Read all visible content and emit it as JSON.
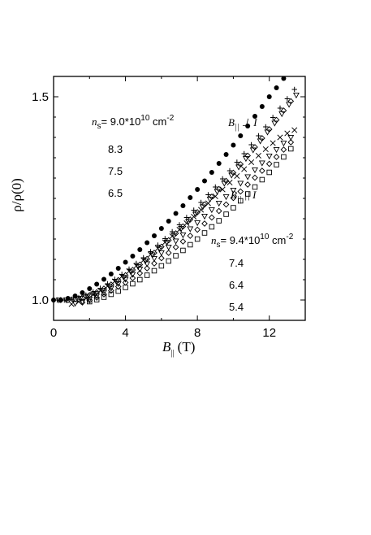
{
  "chart_data": {
    "type": "scatter",
    "xlabel": {
      "main": "B",
      "sub": "||",
      "unit": " (T)"
    },
    "ylabel": "ρ/ρ(0)",
    "xlim": [
      0,
      14
    ],
    "ylim": [
      0.95,
      1.55
    ],
    "x_ticks": [
      0,
      4,
      8,
      12
    ],
    "x_tick_labels": [
      "0",
      "4",
      "8",
      "12"
    ],
    "y_ticks": [
      1.0,
      1.5
    ],
    "y_tick_labels": [
      "1.0",
      "1.5"
    ],
    "groups": [
      {
        "label": {
          "main": "B",
          "sub": "||",
          "rest": " ⊥ I"
        },
        "legend_header": {
          "var": "n",
          "sub": "s",
          "value": "= 9.0*10",
          "sup": "10",
          "unit": " cm",
          "unit_sup": "-2"
        },
        "legend_values": [
          "8.3",
          "7.5",
          "6.5"
        ]
      },
      {
        "label": {
          "main": "B",
          "sub": "||",
          "rest": " || I"
        },
        "legend_header": {
          "var": "n",
          "sub": "s",
          "value": "= 9.4*10",
          "sup": "10",
          "unit": " cm",
          "unit_sup": "-2"
        },
        "legend_values": [
          "7.4",
          "6.4",
          "5.4"
        ]
      }
    ],
    "series": [
      {
        "group": 0,
        "marker": "filled-circle",
        "x": [
          0,
          0.4,
          0.8,
          1.2,
          1.6,
          2.0,
          2.4,
          2.8,
          3.2,
          3.6,
          4.0,
          4.4,
          4.8,
          5.2,
          5.6,
          6.0,
          6.4,
          6.8,
          7.2,
          7.6,
          8.0,
          8.4,
          8.8,
          9.2,
          9.6,
          10.0,
          10.4,
          10.8,
          11.2,
          11.6,
          12.0,
          12.4,
          12.8,
          13.2
        ],
        "y": [
          1.0,
          1.0,
          1.004,
          1.01,
          1.018,
          1.028,
          1.039,
          1.051,
          1.064,
          1.078,
          1.093,
          1.108,
          1.124,
          1.141,
          1.158,
          1.176,
          1.194,
          1.213,
          1.232,
          1.252,
          1.272,
          1.293,
          1.314,
          1.336,
          1.358,
          1.381,
          1.404,
          1.428,
          1.452,
          1.476,
          1.5,
          1.522,
          1.545,
          1.568
        ]
      },
      {
        "group": 0,
        "marker": "plus",
        "x": [
          0.2,
          0.6,
          1.0,
          1.4,
          1.8,
          2.2,
          2.6,
          3.0,
          3.4,
          3.8,
          4.2,
          4.6,
          5.0,
          5.4,
          5.8,
          6.2,
          6.6,
          7.0,
          7.4,
          7.8,
          8.2,
          8.6,
          9.0,
          9.4,
          9.8,
          10.2,
          10.6,
          11.0,
          11.4,
          11.8,
          12.2,
          12.6,
          13.0,
          13.4
        ],
        "y": [
          1.0,
          1.0,
          1.002,
          1.006,
          1.012,
          1.02,
          1.029,
          1.04,
          1.051,
          1.063,
          1.076,
          1.09,
          1.104,
          1.119,
          1.135,
          1.151,
          1.168,
          1.185,
          1.203,
          1.221,
          1.24,
          1.259,
          1.278,
          1.298,
          1.318,
          1.339,
          1.36,
          1.382,
          1.404,
          1.426,
          1.449,
          1.472,
          1.495,
          1.518
        ]
      },
      {
        "group": 0,
        "marker": "down-triangle",
        "x": [
          0.3,
          0.7,
          1.1,
          1.5,
          1.9,
          2.3,
          2.7,
          3.1,
          3.5,
          3.9,
          4.3,
          4.7,
          5.1,
          5.5,
          5.9,
          6.3,
          6.7,
          7.1,
          7.5,
          7.9,
          8.3,
          8.7,
          9.1,
          9.5,
          9.9,
          10.3,
          10.7,
          11.1,
          11.5,
          11.9,
          12.3,
          12.7,
          13.1,
          13.5
        ],
        "y": [
          1.0,
          1.0,
          1.001,
          1.004,
          1.009,
          1.016,
          1.024,
          1.034,
          1.045,
          1.056,
          1.069,
          1.082,
          1.096,
          1.111,
          1.126,
          1.142,
          1.159,
          1.176,
          1.193,
          1.211,
          1.229,
          1.248,
          1.267,
          1.287,
          1.307,
          1.327,
          1.348,
          1.369,
          1.391,
          1.413,
          1.435,
          1.458,
          1.481,
          1.504
        ]
      },
      {
        "group": 0,
        "marker": "open-diamond",
        "x": [
          0.4,
          0.8,
          1.2,
          1.6,
          2.0,
          2.4,
          2.8,
          3.2,
          3.6,
          4.0,
          4.4,
          4.8,
          5.2,
          5.6,
          6.0,
          6.4,
          6.8,
          7.2,
          7.6,
          8.0,
          8.4,
          8.8,
          9.2,
          9.6,
          10.0,
          10.4,
          10.8,
          11.2,
          11.6,
          12.0,
          12.4,
          12.8,
          13.2
        ],
        "y": [
          1.0,
          1.0,
          1.002,
          1.006,
          1.012,
          1.019,
          1.028,
          1.038,
          1.049,
          1.061,
          1.074,
          1.087,
          1.101,
          1.116,
          1.131,
          1.147,
          1.164,
          1.181,
          1.198,
          1.216,
          1.235,
          1.254,
          1.273,
          1.293,
          1.313,
          1.334,
          1.355,
          1.376,
          1.398,
          1.42,
          1.443,
          1.466,
          1.489
        ]
      },
      {
        "group": 1,
        "marker": "cross",
        "x": [
          1.0,
          1.4,
          1.8,
          2.2,
          2.6,
          3.0,
          3.4,
          3.8,
          4.2,
          4.6,
          5.0,
          5.4,
          5.8,
          6.2,
          6.6,
          7.0,
          7.4,
          7.8,
          8.2,
          8.6,
          9.0,
          9.4,
          9.8,
          10.2,
          10.6,
          11.0,
          11.4,
          11.8,
          12.2,
          12.6,
          13.0,
          13.4
        ],
        "y": [
          0.99,
          0.996,
          1.004,
          1.013,
          1.023,
          1.034,
          1.046,
          1.058,
          1.071,
          1.084,
          1.098,
          1.112,
          1.127,
          1.142,
          1.157,
          1.173,
          1.189,
          1.205,
          1.222,
          1.238,
          1.255,
          1.272,
          1.289,
          1.305,
          1.322,
          1.339,
          1.355,
          1.371,
          1.386,
          1.4,
          1.41,
          1.418
        ]
      },
      {
        "group": 1,
        "marker": "down-triangle",
        "x": [
          1.2,
          1.6,
          2.0,
          2.4,
          2.8,
          3.2,
          3.6,
          4.0,
          4.4,
          4.8,
          5.2,
          5.6,
          6.0,
          6.4,
          6.8,
          7.2,
          7.6,
          8.0,
          8.4,
          8.8,
          9.2,
          9.6,
          10.0,
          10.4,
          10.8,
          11.2,
          11.6,
          12.0,
          12.4,
          12.8,
          13.2
        ],
        "y": [
          0.992,
          0.996,
          1.002,
          1.01,
          1.019,
          1.029,
          1.04,
          1.051,
          1.063,
          1.076,
          1.089,
          1.102,
          1.116,
          1.13,
          1.145,
          1.16,
          1.175,
          1.19,
          1.206,
          1.222,
          1.238,
          1.254,
          1.27,
          1.287,
          1.303,
          1.32,
          1.337,
          1.354,
          1.37,
          1.386,
          1.4
        ]
      },
      {
        "group": 1,
        "marker": "open-diamond",
        "x": [
          1.6,
          2.0,
          2.4,
          2.8,
          3.2,
          3.6,
          4.0,
          4.4,
          4.8,
          5.2,
          5.6,
          6.0,
          6.4,
          6.8,
          7.2,
          7.6,
          8.0,
          8.4,
          8.8,
          9.2,
          9.6,
          10.0,
          10.4,
          10.8,
          11.2,
          11.6,
          12.0,
          12.4,
          12.8,
          13.2
        ],
        "y": [
          0.994,
          0.999,
          1.006,
          1.014,
          1.023,
          1.033,
          1.043,
          1.054,
          1.066,
          1.078,
          1.09,
          1.103,
          1.116,
          1.13,
          1.144,
          1.158,
          1.173,
          1.188,
          1.203,
          1.219,
          1.235,
          1.251,
          1.267,
          1.284,
          1.301,
          1.318,
          1.335,
          1.352,
          1.37,
          1.388
        ]
      },
      {
        "group": 1,
        "marker": "open-square",
        "x": [
          2.0,
          2.4,
          2.8,
          3.2,
          3.6,
          4.0,
          4.4,
          4.8,
          5.2,
          5.6,
          6.0,
          6.4,
          6.8,
          7.2,
          7.6,
          8.0,
          8.4,
          8.8,
          9.2,
          9.6,
          10.0,
          10.4,
          10.8,
          11.2,
          11.6,
          12.0,
          12.4,
          12.8,
          13.2
        ],
        "y": [
          0.996,
          1.001,
          1.007,
          1.014,
          1.022,
          1.031,
          1.04,
          1.05,
          1.061,
          1.072,
          1.084,
          1.096,
          1.109,
          1.122,
          1.136,
          1.15,
          1.165,
          1.18,
          1.195,
          1.211,
          1.227,
          1.244,
          1.261,
          1.278,
          1.296,
          1.314,
          1.333,
          1.352,
          1.372
        ]
      }
    ]
  }
}
